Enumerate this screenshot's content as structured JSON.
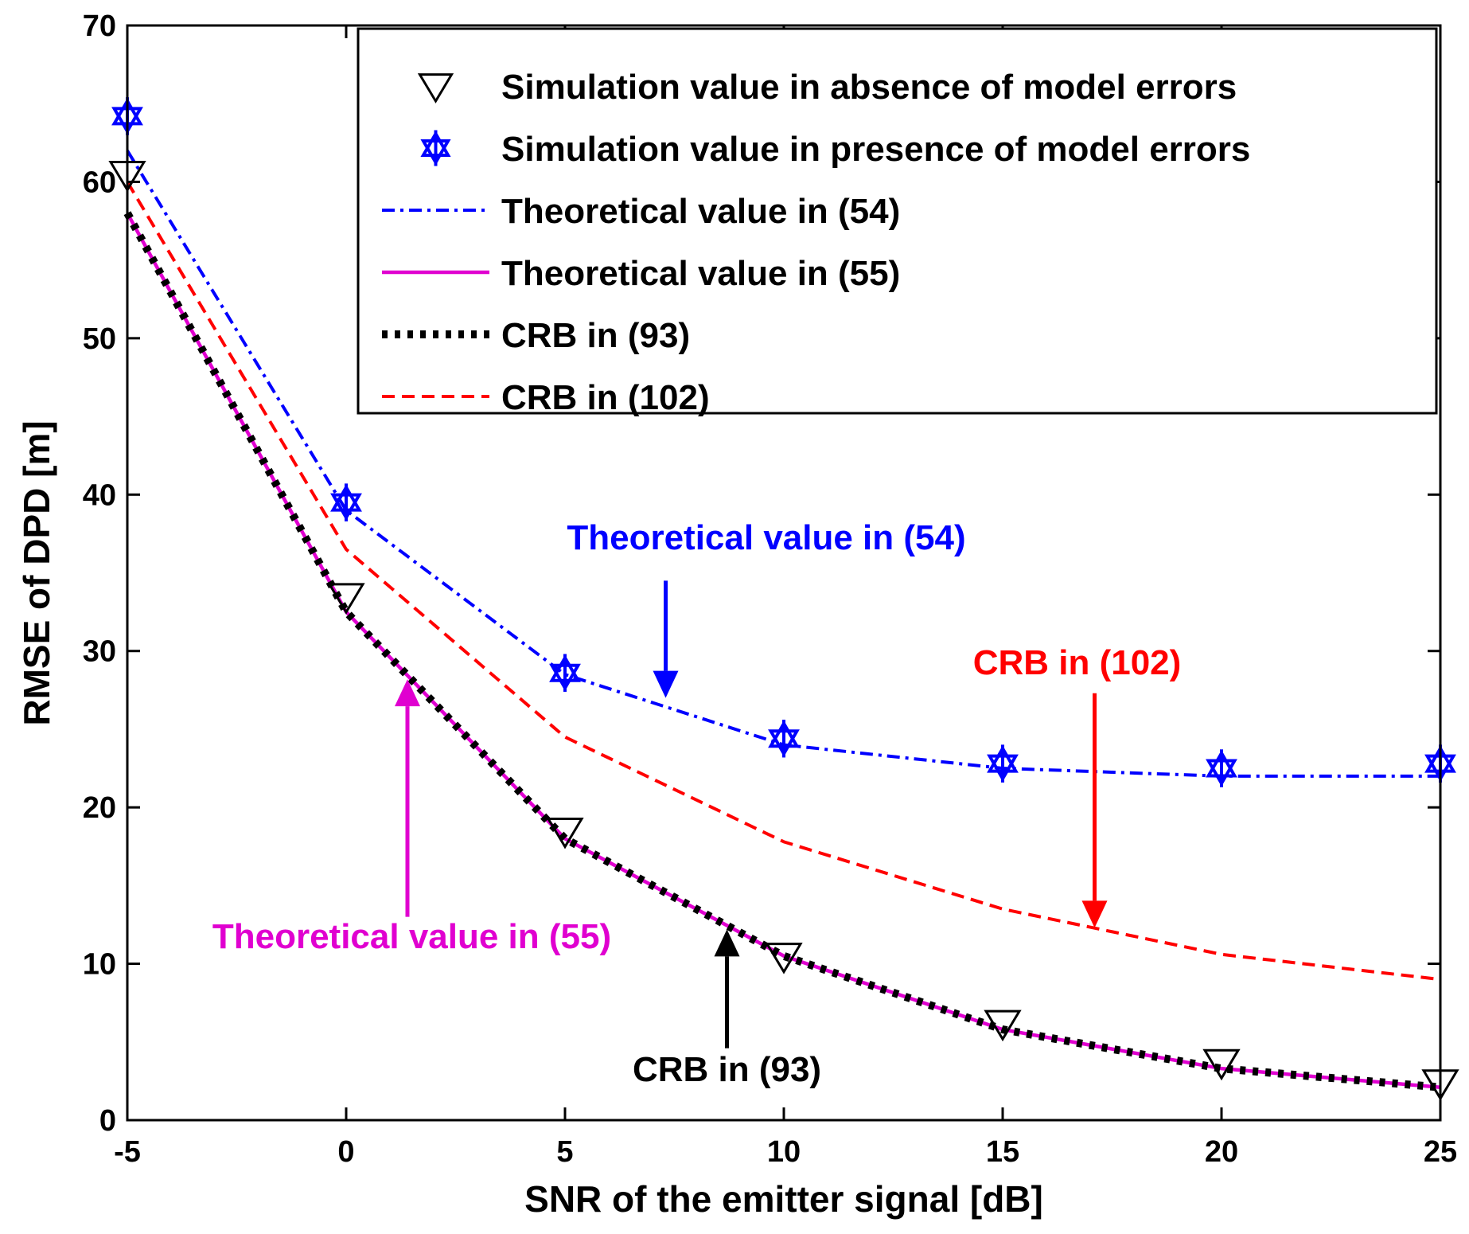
{
  "chart_data": {
    "type": "line",
    "title": "",
    "xlabel": "SNR of the emitter signal [dB]",
    "ylabel": "RMSE of DPD [m]",
    "xlim": [
      -5,
      25
    ],
    "ylim": [
      0,
      70
    ],
    "xticks": [
      -5,
      0,
      5,
      10,
      15,
      20,
      25
    ],
    "yticks": [
      0,
      10,
      20,
      30,
      40,
      50,
      60,
      70
    ],
    "xtick_labels": [
      "-5",
      "0",
      "5",
      "10",
      "15",
      "20",
      "25"
    ],
    "ytick_labels": [
      "0",
      "10",
      "20",
      "30",
      "40",
      "50",
      "60",
      "70"
    ],
    "grid": false,
    "legend_position": "top-right",
    "x": [
      -5,
      0,
      5,
      10,
      15,
      20,
      25
    ],
    "series": [
      {
        "key": "sim_absence",
        "name": "Simulation value in absence of model errors",
        "style": "marker-triangle-down",
        "color": "#000000",
        "values": [
          60.5,
          33.5,
          18.5,
          10.5,
          6.2,
          3.7,
          2.4
        ]
      },
      {
        "key": "sim_presence",
        "name": "Simulation value in presence of model errors",
        "style": "marker-hexagram",
        "color": "#0000ff",
        "values": [
          64.2,
          39.5,
          28.6,
          24.4,
          22.8,
          22.5,
          22.8
        ]
      },
      {
        "key": "theory54",
        "name": "Theoretical value in (54)",
        "style": "dash-dot",
        "color": "#0000ff",
        "values": [
          62.0,
          39.0,
          28.5,
          24.0,
          22.5,
          22.0,
          22.0
        ]
      },
      {
        "key": "theory55",
        "name": "Theoretical value in (55)",
        "style": "solid",
        "color": "#e000d0",
        "values": [
          58.0,
          32.5,
          18.0,
          10.5,
          5.8,
          3.3,
          2.1
        ]
      },
      {
        "key": "crb93",
        "name": "CRB in (93)",
        "style": "dotted-thick",
        "color": "#000000",
        "values": [
          58.0,
          32.5,
          18.0,
          10.5,
          5.8,
          3.3,
          2.1
        ]
      },
      {
        "key": "crb102",
        "name": "CRB in (102)",
        "style": "dashed",
        "color": "#ff0000",
        "values": [
          60.0,
          36.5,
          24.5,
          17.8,
          13.5,
          10.6,
          9.0
        ]
      }
    ],
    "annotations": [
      {
        "text": "Theoretical value in (54)",
        "color": "#0000ff",
        "text_at": [
          9.6,
          36.5
        ],
        "arrow_from": [
          7.3,
          34.5
        ],
        "arrow_to": [
          7.3,
          27.0
        ]
      },
      {
        "text": "CRB in (102)",
        "color": "#ff0000",
        "text_at": [
          16.7,
          28.5
        ],
        "arrow_from": [
          17.1,
          27.3
        ],
        "arrow_to": [
          17.1,
          12.3
        ]
      },
      {
        "text": "Theoretical value in (55)",
        "color": "#e000d0",
        "text_at": [
          1.5,
          11.0
        ],
        "arrow_from": [
          1.4,
          13.0
        ],
        "arrow_to": [
          1.4,
          28.2
        ]
      },
      {
        "text": "CRB in (93)",
        "color": "#000000",
        "text_at": [
          8.7,
          2.5
        ],
        "arrow_from": [
          8.7,
          4.6
        ],
        "arrow_to": [
          8.7,
          12.2
        ]
      }
    ]
  }
}
